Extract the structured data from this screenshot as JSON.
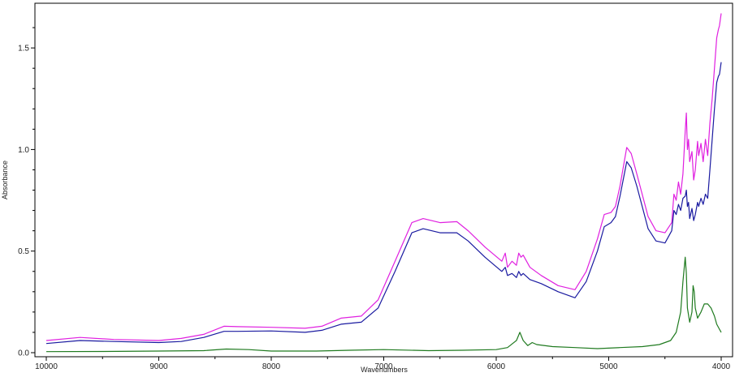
{
  "chart_data": {
    "type": "line",
    "xlabel": "Wavenumbers",
    "ylabel": "Absorbance",
    "xlim": [
      10000,
      4000
    ],
    "x_reversed": true,
    "ylim": [
      -0.02,
      1.72
    ],
    "xticks": [
      10000,
      9000,
      8000,
      7000,
      6000,
      5000,
      4000
    ],
    "yticks": [
      {
        "value": 0.0,
        "label": "0.0"
      },
      {
        "value": 0.5,
        "label": "0.5"
      },
      {
        "value": 1.0,
        "label": "1.0"
      },
      {
        "value": 1.5,
        "label": "1.5"
      }
    ],
    "grid": false,
    "legend": "none",
    "series": [
      {
        "color": "#e020e0",
        "points": [
          [
            10000,
            0.06
          ],
          [
            9700,
            0.075
          ],
          [
            9400,
            0.065
          ],
          [
            9000,
            0.06
          ],
          [
            8800,
            0.07
          ],
          [
            8600,
            0.09
          ],
          [
            8420,
            0.13
          ],
          [
            8300,
            0.128
          ],
          [
            8000,
            0.125
          ],
          [
            7700,
            0.12
          ],
          [
            7550,
            0.13
          ],
          [
            7380,
            0.17
          ],
          [
            7200,
            0.18
          ],
          [
            7050,
            0.26
          ],
          [
            6900,
            0.45
          ],
          [
            6750,
            0.64
          ],
          [
            6650,
            0.66
          ],
          [
            6500,
            0.64
          ],
          [
            6350,
            0.645
          ],
          [
            6250,
            0.6
          ],
          [
            6100,
            0.52
          ],
          [
            5950,
            0.45
          ],
          [
            5920,
            0.49
          ],
          [
            5900,
            0.42
          ],
          [
            5860,
            0.45
          ],
          [
            5820,
            0.43
          ],
          [
            5800,
            0.49
          ],
          [
            5780,
            0.47
          ],
          [
            5760,
            0.48
          ],
          [
            5700,
            0.42
          ],
          [
            5600,
            0.38
          ],
          [
            5450,
            0.33
          ],
          [
            5300,
            0.31
          ],
          [
            5200,
            0.4
          ],
          [
            5100,
            0.56
          ],
          [
            5040,
            0.68
          ],
          [
            4980,
            0.69
          ],
          [
            4940,
            0.72
          ],
          [
            4900,
            0.82
          ],
          [
            4840,
            1.01
          ],
          [
            4800,
            0.98
          ],
          [
            4750,
            0.88
          ],
          [
            4650,
            0.67
          ],
          [
            4580,
            0.6
          ],
          [
            4500,
            0.59
          ],
          [
            4440,
            0.64
          ],
          [
            4420,
            0.78
          ],
          [
            4400,
            0.75
          ],
          [
            4380,
            0.84
          ],
          [
            4360,
            0.78
          ],
          [
            4340,
            0.88
          ],
          [
            4320,
            1.09
          ],
          [
            4310,
            1.18
          ],
          [
            4300,
            1.0
          ],
          [
            4290,
            1.05
          ],
          [
            4280,
            0.94
          ],
          [
            4260,
            0.99
          ],
          [
            4245,
            0.85
          ],
          [
            4230,
            0.9
          ],
          [
            4210,
            1.04
          ],
          [
            4200,
            0.97
          ],
          [
            4180,
            1.03
          ],
          [
            4160,
            0.94
          ],
          [
            4140,
            1.05
          ],
          [
            4120,
            0.97
          ],
          [
            4100,
            1.13
          ],
          [
            4080,
            1.25
          ],
          [
            4060,
            1.4
          ],
          [
            4040,
            1.55
          ],
          [
            4025,
            1.59
          ],
          [
            4015,
            1.61
          ],
          [
            4000,
            1.67
          ]
        ]
      },
      {
        "color": "#1a1aa0",
        "points": [
          [
            10000,
            0.045
          ],
          [
            9700,
            0.06
          ],
          [
            9400,
            0.055
          ],
          [
            9000,
            0.05
          ],
          [
            8800,
            0.055
          ],
          [
            8600,
            0.075
          ],
          [
            8420,
            0.105
          ],
          [
            8300,
            0.105
          ],
          [
            8000,
            0.107
          ],
          [
            7700,
            0.1
          ],
          [
            7550,
            0.11
          ],
          [
            7380,
            0.14
          ],
          [
            7200,
            0.15
          ],
          [
            7050,
            0.22
          ],
          [
            6900,
            0.4
          ],
          [
            6750,
            0.59
          ],
          [
            6650,
            0.61
          ],
          [
            6500,
            0.59
          ],
          [
            6350,
            0.59
          ],
          [
            6250,
            0.55
          ],
          [
            6100,
            0.47
          ],
          [
            5950,
            0.4
          ],
          [
            5920,
            0.42
          ],
          [
            5900,
            0.38
          ],
          [
            5860,
            0.39
          ],
          [
            5820,
            0.37
          ],
          [
            5800,
            0.4
          ],
          [
            5780,
            0.38
          ],
          [
            5760,
            0.39
          ],
          [
            5700,
            0.36
          ],
          [
            5600,
            0.34
          ],
          [
            5450,
            0.3
          ],
          [
            5300,
            0.27
          ],
          [
            5200,
            0.35
          ],
          [
            5100,
            0.5
          ],
          [
            5040,
            0.62
          ],
          [
            4980,
            0.64
          ],
          [
            4940,
            0.67
          ],
          [
            4900,
            0.77
          ],
          [
            4840,
            0.94
          ],
          [
            4800,
            0.91
          ],
          [
            4750,
            0.82
          ],
          [
            4650,
            0.61
          ],
          [
            4580,
            0.55
          ],
          [
            4500,
            0.54
          ],
          [
            4440,
            0.6
          ],
          [
            4420,
            0.7
          ],
          [
            4400,
            0.68
          ],
          [
            4380,
            0.73
          ],
          [
            4360,
            0.7
          ],
          [
            4340,
            0.76
          ],
          [
            4320,
            0.77
          ],
          [
            4310,
            0.8
          ],
          [
            4300,
            0.72
          ],
          [
            4290,
            0.74
          ],
          [
            4280,
            0.66
          ],
          [
            4260,
            0.71
          ],
          [
            4245,
            0.65
          ],
          [
            4230,
            0.68
          ],
          [
            4210,
            0.74
          ],
          [
            4200,
            0.72
          ],
          [
            4180,
            0.76
          ],
          [
            4160,
            0.73
          ],
          [
            4140,
            0.78
          ],
          [
            4120,
            0.76
          ],
          [
            4100,
            0.9
          ],
          [
            4080,
            1.05
          ],
          [
            4060,
            1.2
          ],
          [
            4040,
            1.33
          ],
          [
            4025,
            1.36
          ],
          [
            4015,
            1.37
          ],
          [
            4000,
            1.43
          ]
        ]
      },
      {
        "color": "#1f7a1f",
        "points": [
          [
            10000,
            0.005
          ],
          [
            9500,
            0.006
          ],
          [
            9000,
            0.008
          ],
          [
            8600,
            0.01
          ],
          [
            8400,
            0.018
          ],
          [
            8200,
            0.015
          ],
          [
            8000,
            0.008
          ],
          [
            7600,
            0.008
          ],
          [
            7300,
            0.012
          ],
          [
            7000,
            0.015
          ],
          [
            6600,
            0.01
          ],
          [
            6300,
            0.012
          ],
          [
            6000,
            0.015
          ],
          [
            5900,
            0.025
          ],
          [
            5820,
            0.06
          ],
          [
            5790,
            0.1
          ],
          [
            5760,
            0.06
          ],
          [
            5720,
            0.035
          ],
          [
            5680,
            0.05
          ],
          [
            5640,
            0.04
          ],
          [
            5500,
            0.03
          ],
          [
            5300,
            0.025
          ],
          [
            5100,
            0.02
          ],
          [
            4900,
            0.025
          ],
          [
            4700,
            0.03
          ],
          [
            4550,
            0.04
          ],
          [
            4450,
            0.06
          ],
          [
            4400,
            0.1
          ],
          [
            4360,
            0.2
          ],
          [
            4340,
            0.35
          ],
          [
            4320,
            0.47
          ],
          [
            4310,
            0.39
          ],
          [
            4300,
            0.22
          ],
          [
            4280,
            0.15
          ],
          [
            4260,
            0.2
          ],
          [
            4250,
            0.33
          ],
          [
            4240,
            0.3
          ],
          [
            4230,
            0.22
          ],
          [
            4210,
            0.17
          ],
          [
            4180,
            0.2
          ],
          [
            4150,
            0.24
          ],
          [
            4120,
            0.24
          ],
          [
            4090,
            0.22
          ],
          [
            4060,
            0.18
          ],
          [
            4040,
            0.14
          ],
          [
            4020,
            0.12
          ],
          [
            4000,
            0.1
          ]
        ]
      }
    ]
  }
}
